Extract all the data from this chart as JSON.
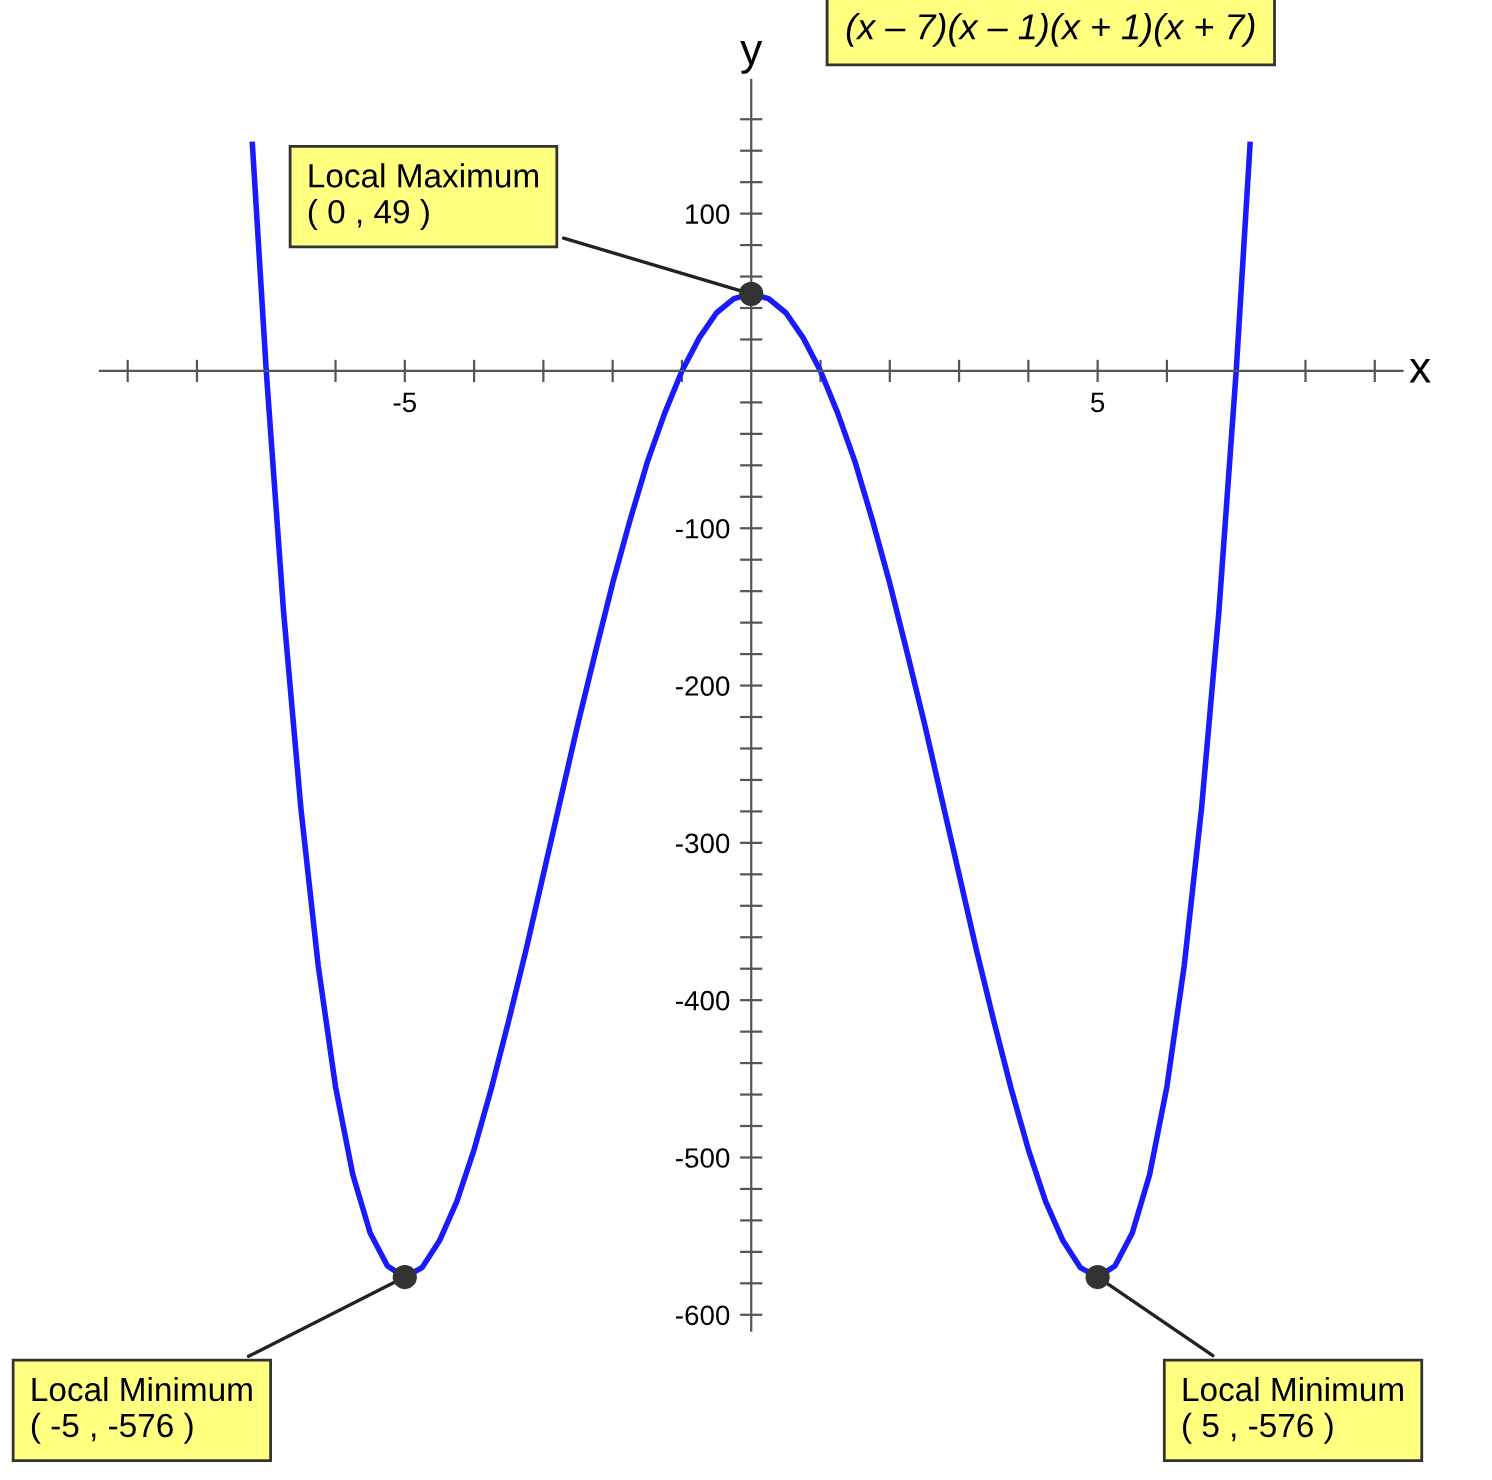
{
  "chart_data": {
    "type": "line",
    "xlabel": "x",
    "ylabel": "y",
    "xlim": [
      -9.4,
      9.4
    ],
    "ylim": [
      -610,
      185
    ],
    "xticks": [
      {
        "value": -9,
        "label": null
      },
      {
        "value": -8,
        "label": null
      },
      {
        "value": -7,
        "label": null
      },
      {
        "value": -6,
        "label": null
      },
      -5,
      {
        "value": -4,
        "label": null
      },
      {
        "value": -3,
        "label": null
      },
      {
        "value": -2,
        "label": null
      },
      {
        "value": -1,
        "label": null
      },
      {
        "value": 1,
        "label": null
      },
      {
        "value": 2,
        "label": null
      },
      {
        "value": 3,
        "label": null
      },
      {
        "value": 4,
        "label": null
      },
      5,
      {
        "value": 6,
        "label": null
      },
      {
        "value": 7,
        "label": null
      },
      {
        "value": 8,
        "label": null
      },
      {
        "value": 9,
        "label": null
      }
    ],
    "yticks": [
      -600,
      {
        "value": -580,
        "label": null
      },
      {
        "value": -560,
        "label": null
      },
      {
        "value": -540,
        "label": null
      },
      {
        "value": -520,
        "label": null
      },
      -500,
      {
        "value": -480,
        "label": null
      },
      {
        "value": -460,
        "label": null
      },
      {
        "value": -440,
        "label": null
      },
      {
        "value": -420,
        "label": null
      },
      -400,
      {
        "value": -380,
        "label": null
      },
      {
        "value": -360,
        "label": null
      },
      {
        "value": -340,
        "label": null
      },
      {
        "value": -320,
        "label": null
      },
      -300,
      {
        "value": -280,
        "label": null
      },
      {
        "value": -260,
        "label": null
      },
      {
        "value": -240,
        "label": null
      },
      {
        "value": -220,
        "label": null
      },
      -200,
      {
        "value": -180,
        "label": null
      },
      {
        "value": -160,
        "label": null
      },
      {
        "value": -140,
        "label": null
      },
      {
        "value": -120,
        "label": null
      },
      -100,
      {
        "value": -80,
        "label": null
      },
      {
        "value": -60,
        "label": null
      },
      {
        "value": -40,
        "label": null
      },
      {
        "value": -20,
        "label": null
      },
      {
        "value": 20,
        "label": null
      },
      {
        "value": 40,
        "label": null
      },
      {
        "value": 60,
        "label": null
      },
      {
        "value": 80,
        "label": null
      },
      100,
      {
        "value": 120,
        "label": null
      },
      {
        "value": 140,
        "label": null
      },
      {
        "value": 160,
        "label": null
      }
    ],
    "grid": false,
    "legend": false,
    "series": [
      {
        "color": "#1a1aff",
        "marker": "none",
        "x": [
          -7.2,
          -7,
          -6.75,
          -6.5,
          -6.25,
          -6,
          -5.75,
          -5.5,
          -5.25,
          -5,
          -4.75,
          -4.5,
          -4.25,
          -4,
          -3.75,
          -3.5,
          -3.25,
          -3,
          -2.75,
          -2.5,
          -2.25,
          -2,
          -1.75,
          -1.5,
          -1.25,
          -1,
          -0.75,
          -0.5,
          -0.25,
          0,
          0.25,
          0.5,
          0.75,
          1,
          1.25,
          1.5,
          1.75,
          2,
          2.25,
          2.5,
          2.75,
          3,
          3.25,
          3.5,
          3.75,
          4,
          4.25,
          4.5,
          4.75,
          5,
          5.25,
          5.5,
          5.75,
          6,
          6.25,
          6.5,
          6.75,
          7,
          7.2
        ],
        "values": [
          144,
          0,
          -153,
          -278,
          -378,
          -455,
          -511,
          -548,
          -569,
          -576,
          -570,
          -553,
          -528,
          -495,
          -456,
          -413,
          -368,
          -320,
          -272,
          -224,
          -179,
          -135,
          -95,
          -58,
          -27,
          0,
          21,
          37,
          46,
          49,
          46,
          37,
          21,
          0,
          -27,
          -58,
          -95,
          -135,
          -179,
          -224,
          -272,
          -320,
          -368,
          -413,
          -456,
          -495,
          -528,
          -553,
          -570,
          -576,
          -569,
          -548,
          -511,
          -455,
          -378,
          -278,
          -153,
          0,
          144
        ]
      },
      {
        "type": "scatter",
        "color": "#333333",
        "marker": "circle",
        "x": [
          0,
          -5,
          5
        ],
        "values": [
          49,
          -576,
          -576
        ]
      }
    ],
    "annotations": [
      {
        "text": "Local Maximum\n( 0 , 49 )",
        "x": 0,
        "y": 49
      },
      {
        "text": "Local Minimum\n( -5 , -576 )",
        "x": -5,
        "y": -576
      },
      {
        "text": "Local Minimum\n( 5 , -576 )",
        "x": 5,
        "y": -576
      },
      "(x – 7)(x – 1)(x + 1)(x + 7)"
    ]
  }
}
